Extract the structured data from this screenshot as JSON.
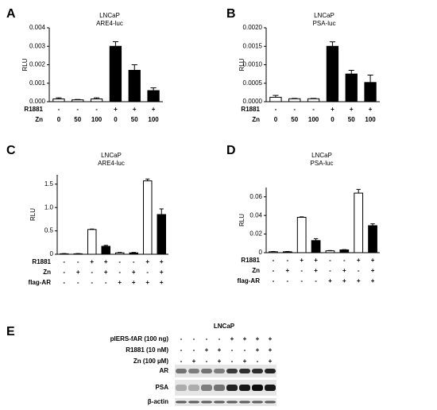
{
  "chart_data": [
    {
      "type": "bar",
      "letter": "A",
      "title": [
        "LNCaP",
        "ARE4-luc"
      ],
      "y_label": "RLU",
      "ylim": [
        0,
        0.004
      ],
      "yticks": [
        {
          "value": 0,
          "label": "0.000"
        },
        {
          "value": 0.001,
          "label": "0.001"
        },
        {
          "value": 0.002,
          "label": "0.002"
        },
        {
          "value": 0.003,
          "label": "0.003"
        },
        {
          "value": 0.004,
          "label": "0.004"
        }
      ],
      "series": [
        {
          "values": [
            0.00015,
            0.0001,
            0.00015,
            0.003,
            0.0017,
            0.0006
          ],
          "errors": [
            6e-05,
            2e-05,
            6e-05,
            0.00025,
            0.0003,
            0.00015
          ],
          "colors": [
            "#ffffff",
            "#ffffff",
            "#ffffff",
            "#000000",
            "#000000",
            "#000000"
          ]
        }
      ],
      "row_labels": [
        {
          "name": "R1881",
          "values": [
            "-",
            "-",
            "-",
            "+",
            "+",
            "+"
          ]
        },
        {
          "name": "Zn",
          "values": [
            "0",
            "50",
            "100",
            "0",
            "50",
            "100"
          ]
        }
      ]
    },
    {
      "type": "bar",
      "letter": "B",
      "title": [
        "LNCaP",
        "PSA-luc"
      ],
      "y_label": "RLU",
      "ylim": [
        0,
        0.002
      ],
      "yticks": [
        {
          "value": 0,
          "label": "0.0000"
        },
        {
          "value": 0.0005,
          "label": "0.0005"
        },
        {
          "value": 0.001,
          "label": "0.0010"
        },
        {
          "value": 0.0015,
          "label": "0.0015"
        },
        {
          "value": 0.002,
          "label": "0.0020"
        }
      ],
      "series": [
        {
          "values": [
            0.00012,
            8e-05,
            8e-05,
            0.0015,
            0.00075,
            0.00052
          ],
          "errors": [
            5e-05,
            1e-05,
            1e-05,
            0.00012,
            0.0001,
            0.0002
          ],
          "colors": [
            "#ffffff",
            "#ffffff",
            "#ffffff",
            "#000000",
            "#000000",
            "#000000"
          ]
        }
      ],
      "row_labels": [
        {
          "name": "R1881",
          "values": [
            "-",
            "-",
            "-",
            "+",
            "+",
            "+"
          ]
        },
        {
          "name": "Zn",
          "values": [
            "0",
            "50",
            "100",
            "0",
            "50",
            "100"
          ]
        }
      ]
    },
    {
      "type": "bar",
      "letter": "C",
      "title": [
        "LNCaP",
        "ARE4-luc"
      ],
      "y_label": "RLU",
      "ylim": [
        0,
        1.7
      ],
      "yticks": [
        0,
        0.5,
        {
          "value": 1,
          "label": "1.0"
        },
        1.5
      ],
      "series": [
        {
          "values": [
            0.01,
            0.01,
            0.53,
            0.17,
            0.03,
            0.03,
            1.57,
            0.85
          ],
          "errors": [
            0.005,
            0.005,
            0.01,
            0.02,
            0.01,
            0.01,
            0.04,
            0.12
          ],
          "colors": [
            "#ffffff",
            "#000000",
            "#ffffff",
            "#000000",
            "#ffffff",
            "#000000",
            "#ffffff",
            "#000000"
          ]
        }
      ],
      "row_labels": [
        {
          "name": "R1881",
          "values": [
            "-",
            "-",
            "+",
            "+",
            "-",
            "-",
            "+",
            "+"
          ]
        },
        {
          "name": "Zn",
          "values": [
            "-",
            "+",
            "-",
            "+",
            "-",
            "+",
            "-",
            "+"
          ]
        },
        {
          "name": "flag-AR",
          "values": [
            "-",
            "-",
            "-",
            "-",
            "+",
            "+",
            "+",
            "+"
          ]
        }
      ]
    },
    {
      "type": "bar",
      "letter": "D",
      "title": [
        "LNCaP",
        "PSA-luc"
      ],
      "y_label": "RLU",
      "ylim": [
        0,
        0.07
      ],
      "yticks": [
        0,
        0.02,
        0.04,
        0.06
      ],
      "series": [
        {
          "values": [
            0.001,
            0.001,
            0.038,
            0.013,
            0.002,
            0.003,
            0.064,
            0.029
          ],
          "errors": [
            0.0003,
            0.0003,
            0.0005,
            0.002,
            0.0003,
            0.0003,
            0.004,
            0.002
          ],
          "colors": [
            "#ffffff",
            "#000000",
            "#ffffff",
            "#000000",
            "#ffffff",
            "#000000",
            "#ffffff",
            "#000000"
          ]
        }
      ],
      "row_labels": [
        {
          "name": "R1881",
          "values": [
            "-",
            "-",
            "+",
            "+",
            "-",
            "-",
            "+",
            "+"
          ]
        },
        {
          "name": "Zn",
          "values": [
            "-",
            "+",
            "-",
            "+",
            "-",
            "+",
            "-",
            "+"
          ]
        },
        {
          "name": "flag-AR",
          "values": [
            "-",
            "-",
            "-",
            "-",
            "+",
            "+",
            "+",
            "+"
          ]
        }
      ]
    }
  ],
  "blot": {
    "letter": "E",
    "title": "LNCaP",
    "conditions": [
      {
        "name": "pIERS-fAR (100 ng)",
        "values": [
          "-",
          "-",
          "-",
          "-",
          "+",
          "+",
          "+",
          "+"
        ]
      },
      {
        "name": "R1881 (10 nM)",
        "values": [
          "-",
          "-",
          "+",
          "+",
          "-",
          "-",
          "+",
          "+"
        ]
      },
      {
        "name": "Zn (100 µM)",
        "values": [
          "-",
          "+",
          "-",
          "+",
          "-",
          "+",
          "-",
          "+"
        ]
      }
    ],
    "bands": [
      "AR",
      "PSA",
      "β-actin"
    ]
  }
}
